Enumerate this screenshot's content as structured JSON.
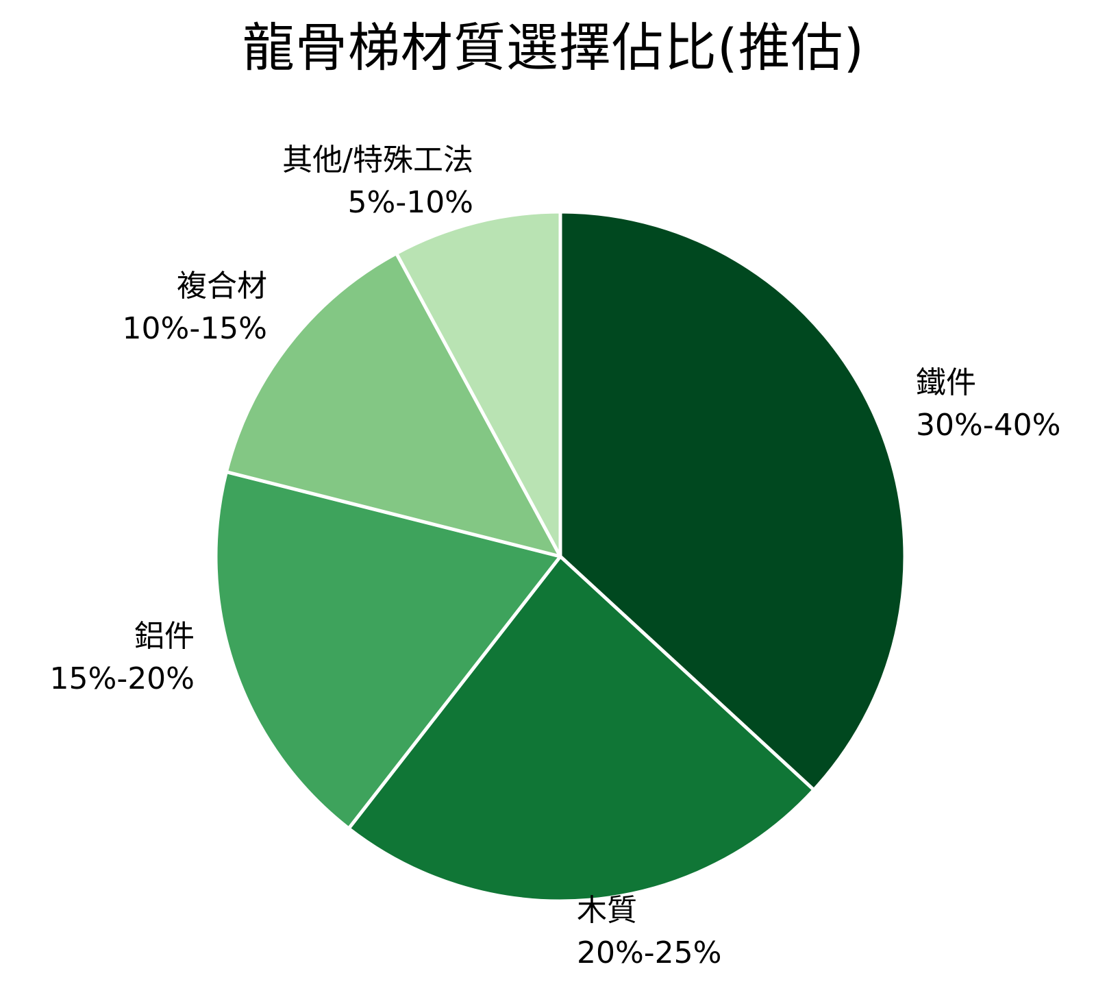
{
  "chart_data": {
    "type": "pie",
    "title": "龍骨梯材質選擇佔比(推估)",
    "start_angle": "12 o'clock",
    "direction": "clockwise",
    "legend": "none (labels placed beside slices)",
    "slices": [
      {
        "label": "鐵件",
        "range_text": "30%-40%",
        "value": 35,
        "color": "#00481f"
      },
      {
        "label": "木質",
        "range_text": "20%-25%",
        "value": 22.5,
        "color": "#107636"
      },
      {
        "label": "鋁件",
        "range_text": "15%-20%",
        "value": 17.5,
        "color": "#3ea35c"
      },
      {
        "label": "複合材",
        "range_text": "10%-15%",
        "value": 12.5,
        "color": "#83c784"
      },
      {
        "label": "其他/特殊工法",
        "range_text": "5%-10%",
        "value": 7.5,
        "color": "#b9e3b3"
      }
    ],
    "separator_color": "#ffffff"
  }
}
